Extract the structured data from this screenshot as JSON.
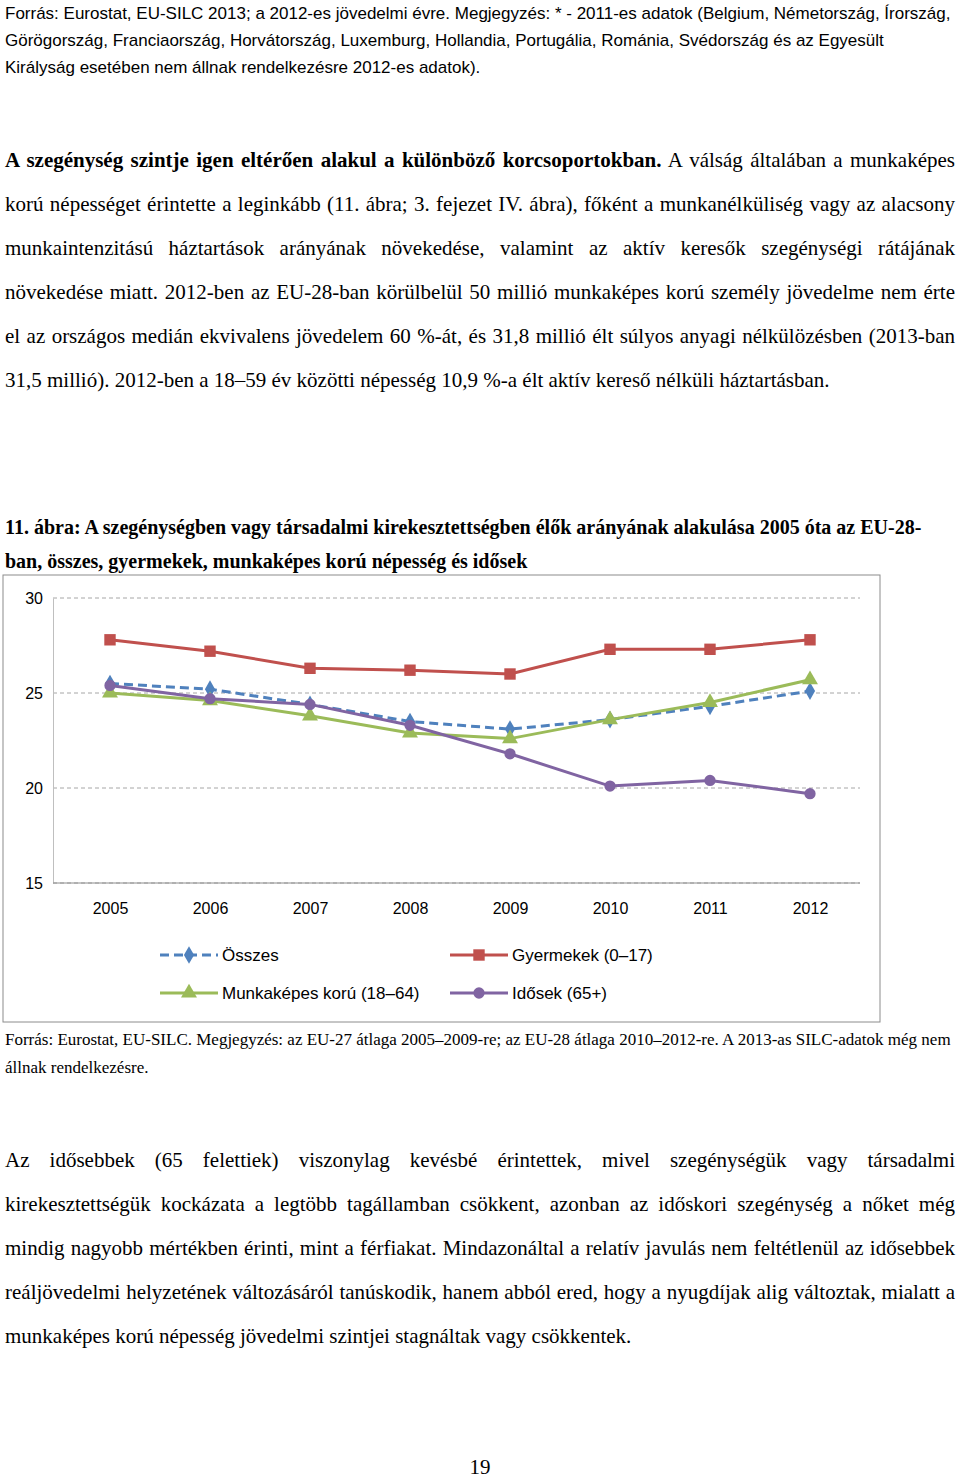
{
  "document": {
    "top_note": "Forrás: Eurostat, EU-SILC 2013; a 2012-es jövedelmi évre. Megjegyzés: * - 2011-es adatok (Belgium, Németország, Írország, Görögország, Franciaország, Horvátország, Luxemburg, Hollandia, Portugália, Románia, Svédország és az Egyesült Királyság esetében nem állnak rendelkezésre 2012-es adatok).",
    "paragraphs": [
      {
        "bold": "A szegénység szintje igen eltérően alakul a különböző korcsoportokban.",
        "text": "A válság általában a munkaképes korú népességet érintette a leginkább (11. ábra; 3. fejezet IV. ábra), főként a munkanélküliség vagy az alacsony munkaintenzitású háztartások arányának növekedése, valamint az aktív keresők szegénységi rátájának növekedése miatt. 2012-ben az EU-28-ban körülbelül 50 millió munkaképes korú személy jövedelme nem érte el az országos medián ekvivalens jövedelem 60 %-át, és 31,8 millió élt súlyos anyagi nélkülözésben (2013-ban 31,5 millió). 2012-ben a 18–59 év közötti népesség 10,9 %-a élt aktív kereső nélküli háztartásban."
      },
      {
        "text": "Az idősebbek (65 felettiek) viszonylag kevésbé érintettek, mivel szegénységük vagy társadalmi kirekesztettségük kockázata a legtöbb tagállamban csökkent, azonban az időskori szegénység a nőket még mindig nagyobb mértékben érinti, mint a férfiakat. Mindazonáltal a relatív javulás nem feltétlenül az idősebbek reáljövedelmi helyzetének változásáról tanúskodik, hanem abból ered, hogy a nyugdíjak alig változtak, mialatt a munkaképes korú népesség jövedelmi szintjei stagnáltak vagy csökkentek."
      }
    ],
    "figure_note": "Forrás: Eurostat, EU-SILC. Megjegyzés: az EU-27 átlaga 2005–2009-re; az EU-28 átlaga 2010–2012-re. A 2013-as SILC-adatok még nem állnak rendelkezésre.",
    "page_number": "19"
  },
  "chart_data": {
    "type": "line",
    "title": "11. ábra: A szegénységben vagy társadalmi kirekesztettségben élők arányának alakulása 2005 óta az EU-28-ban, összes, gyermekek, munkaképes korú népesség és idősek",
    "categories": [
      "2005",
      "2006",
      "2007",
      "2008",
      "2009",
      "2010",
      "2011",
      "2012"
    ],
    "series": [
      {
        "name": "Összes",
        "color": "#4f81bd",
        "marker": "diamond",
        "line_style": "dashed",
        "values": [
          25.5,
          25.2,
          24.4,
          23.5,
          23.1,
          23.6,
          24.3,
          25.1
        ]
      },
      {
        "name": "Gyermekek (0–17)",
        "color": "#c0504d",
        "marker": "square",
        "line_style": "solid",
        "values": [
          27.8,
          27.2,
          26.3,
          26.2,
          26.0,
          27.3,
          27.3,
          27.8
        ]
      },
      {
        "name": "Munkaképes korú (18–64)",
        "color": "#9bbb59",
        "marker": "triangle",
        "line_style": "solid",
        "values": [
          25.0,
          24.6,
          23.8,
          22.9,
          22.6,
          23.6,
          24.5,
          25.7
        ]
      },
      {
        "name": "Idősek (65+)",
        "color": "#8064a2",
        "marker": "circle",
        "line_style": "solid",
        "values": [
          25.4,
          24.7,
          24.4,
          23.3,
          21.8,
          20.1,
          20.4,
          19.7
        ]
      }
    ],
    "ylim": [
      15,
      30
    ],
    "yticks": [
      15,
      20,
      25,
      30
    ],
    "grid": true,
    "legend": "bottom"
  }
}
